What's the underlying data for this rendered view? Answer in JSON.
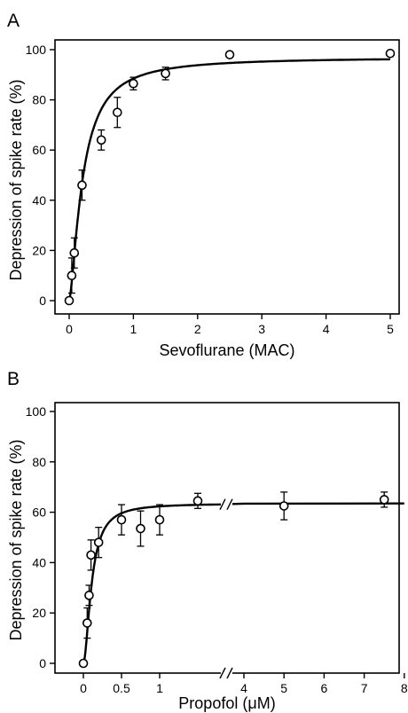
{
  "chart_data": [
    {
      "type": "scatter",
      "panel": "A",
      "xlabel": "Sevoflurane (MAC)",
      "ylabel": "Depression of spike rate (%)",
      "xlim": [
        0,
        5
      ],
      "ylim": [
        0,
        100
      ],
      "xticks": [
        "0",
        "1",
        "2",
        "3",
        "4",
        "5"
      ],
      "yticks": [
        "0",
        "20",
        "40",
        "60",
        "80",
        "100"
      ],
      "points": [
        {
          "x": 0.0,
          "y": 0,
          "err": 0
        },
        {
          "x": 0.04,
          "y": 10,
          "err": 7
        },
        {
          "x": 0.08,
          "y": 19,
          "err": 6
        },
        {
          "x": 0.2,
          "y": 46,
          "err": 6
        },
        {
          "x": 0.5,
          "y": 64,
          "err": 4
        },
        {
          "x": 0.75,
          "y": 75,
          "err": 6
        },
        {
          "x": 1.0,
          "y": 86.5,
          "err": 2.5
        },
        {
          "x": 1.5,
          "y": 90.5,
          "err": 2.5
        },
        {
          "x": 2.5,
          "y": 98,
          "err": 0
        },
        {
          "x": 5.0,
          "y": 98.5,
          "err": 0
        }
      ],
      "fit": {
        "max": 97,
        "ec50": 0.21,
        "hill": 1.5
      }
    },
    {
      "type": "scatter",
      "panel": "B",
      "xlabel": "Propofol (μM)",
      "ylabel": "Depression of spike rate (%)",
      "xlim": [
        0,
        8
      ],
      "ylim": [
        0,
        100
      ],
      "axis_break": [
        1.75,
        4
      ],
      "xticks": [
        "0",
        "0.5",
        "1",
        "4",
        "5",
        "6",
        "7",
        "8"
      ],
      "yticks": [
        "0",
        "20",
        "40",
        "60",
        "80",
        "100"
      ],
      "points": [
        {
          "x": 0.0,
          "y": 0,
          "err": 0
        },
        {
          "x": 0.05,
          "y": 16,
          "err": 6
        },
        {
          "x": 0.075,
          "y": 27,
          "err": 4
        },
        {
          "x": 0.1,
          "y": 43,
          "err": 6
        },
        {
          "x": 0.2,
          "y": 48,
          "err": 6
        },
        {
          "x": 0.5,
          "y": 57,
          "err": 6
        },
        {
          "x": 0.75,
          "y": 53.5,
          "err": 7
        },
        {
          "x": 1.0,
          "y": 57,
          "err": 6
        },
        {
          "x": 1.5,
          "y": 64.5,
          "err": 3
        },
        {
          "x": 5.0,
          "y": 62.5,
          "err": 5.5
        },
        {
          "x": 7.5,
          "y": 65,
          "err": 3
        }
      ],
      "fit": {
        "max": 63.5,
        "ec50": 0.11,
        "hill": 1.8
      }
    }
  ]
}
